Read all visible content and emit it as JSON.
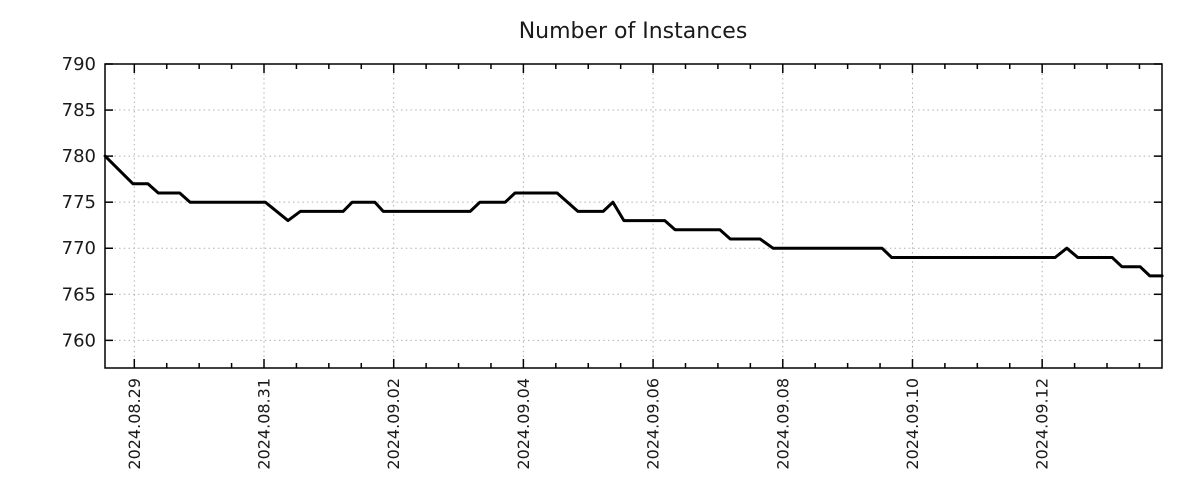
{
  "chart_data": {
    "type": "line",
    "title": "Number of Instances",
    "x_unit": "days since 2024-08-29 00:00",
    "x_range": [
      -0.452,
      15.848
    ],
    "y_range": [
      757,
      790
    ],
    "y_ticks": [
      760,
      765,
      770,
      775,
      780,
      785,
      790
    ],
    "x_major_ticks": [
      {
        "pos": 0,
        "label": "2024.08.29"
      },
      {
        "pos": 2,
        "label": "2024.08.31"
      },
      {
        "pos": 4,
        "label": "2024.09.02"
      },
      {
        "pos": 6,
        "label": "2024.09.04"
      },
      {
        "pos": 8,
        "label": "2024.09.06"
      },
      {
        "pos": 10,
        "label": "2024.09.08"
      },
      {
        "pos": 12,
        "label": "2024.09.10"
      },
      {
        "pos": 14,
        "label": "2024.09.12"
      }
    ],
    "x_minor_step": 0.5,
    "grid": {
      "show": true,
      "style": "dotted",
      "color": "#b0b0b0"
    },
    "frame_color": "#000000",
    "text_color": "#1a1a1a",
    "legend": null,
    "series": [
      {
        "name": "instances",
        "color": "#000000",
        "line_width": 3,
        "points": [
          [
            -0.45,
            780
          ],
          [
            -0.02,
            777
          ],
          [
            0.21,
            777
          ],
          [
            0.37,
            776
          ],
          [
            0.7,
            776
          ],
          [
            0.86,
            775
          ],
          [
            2.02,
            775
          ],
          [
            2.37,
            773
          ],
          [
            2.56,
            774
          ],
          [
            3.22,
            774
          ],
          [
            3.36,
            775
          ],
          [
            3.71,
            775
          ],
          [
            3.84,
            774
          ],
          [
            5.18,
            774
          ],
          [
            5.33,
            775
          ],
          [
            5.72,
            775
          ],
          [
            5.87,
            776
          ],
          [
            6.52,
            776
          ],
          [
            6.84,
            774
          ],
          [
            7.23,
            774
          ],
          [
            7.38,
            775
          ],
          [
            7.55,
            773
          ],
          [
            8.18,
            773
          ],
          [
            8.34,
            772
          ],
          [
            9.03,
            772
          ],
          [
            9.19,
            771
          ],
          [
            9.65,
            771
          ],
          [
            9.85,
            770
          ],
          [
            11.53,
            770
          ],
          [
            11.68,
            769
          ],
          [
            14.2,
            769
          ],
          [
            14.38,
            770
          ],
          [
            14.55,
            769
          ],
          [
            15.08,
            769
          ],
          [
            15.23,
            768
          ],
          [
            15.51,
            768
          ],
          [
            15.66,
            767
          ],
          [
            15.85,
            767
          ]
        ]
      }
    ]
  }
}
